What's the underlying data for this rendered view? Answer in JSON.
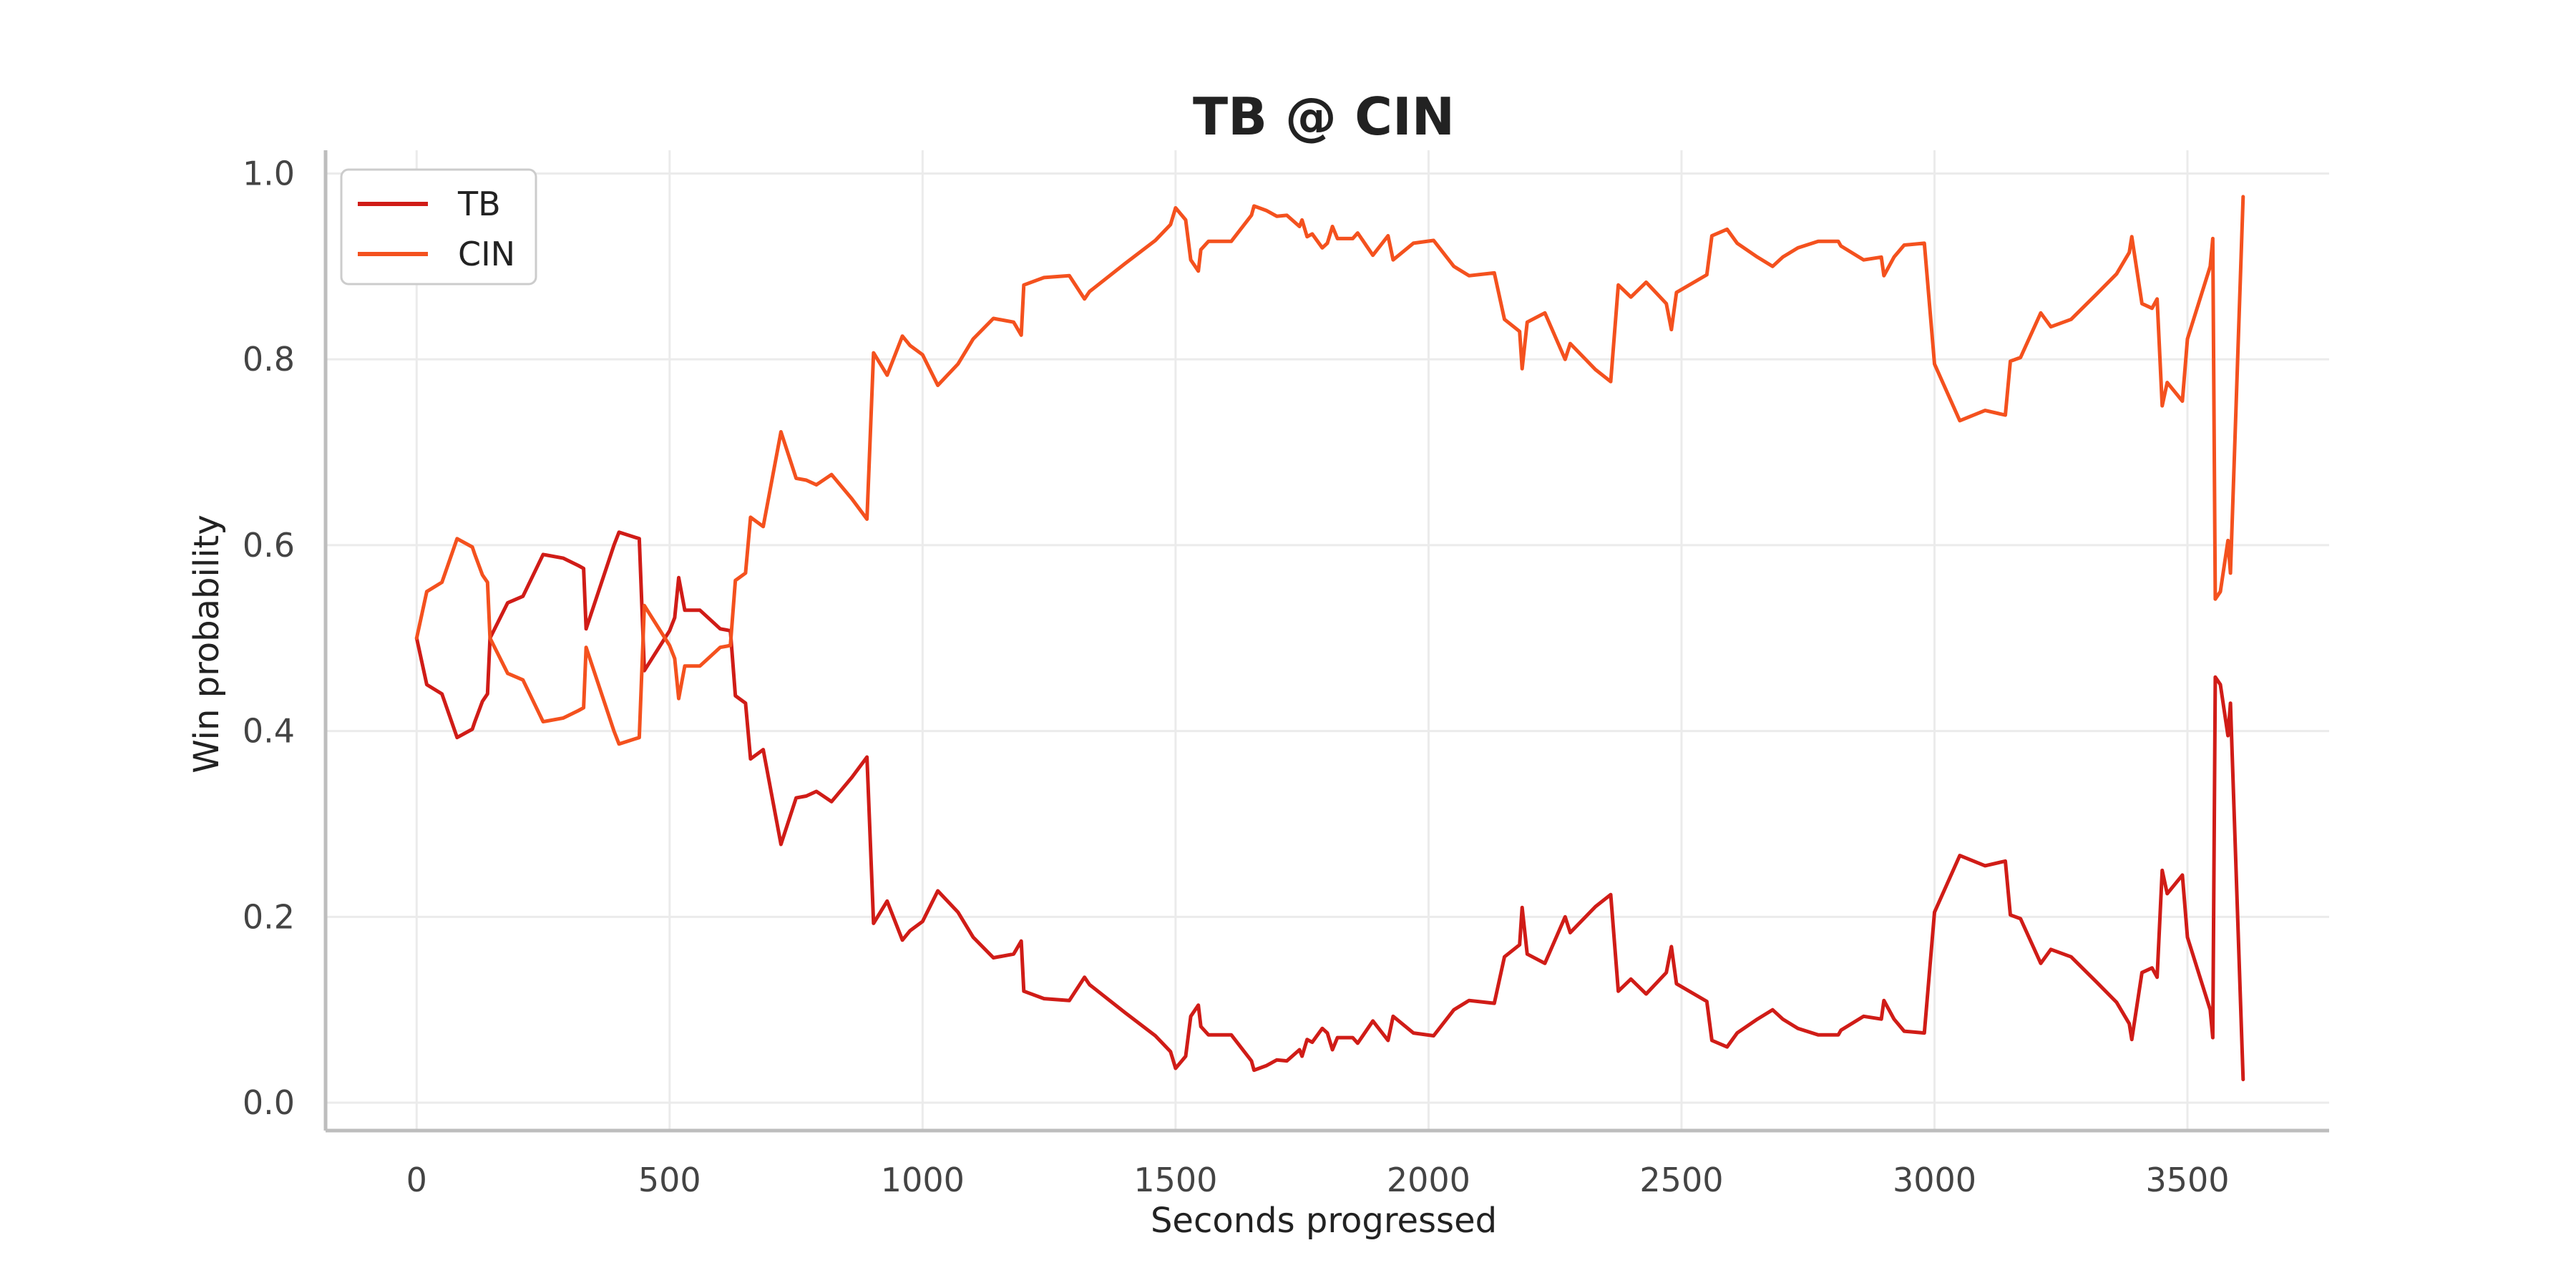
{
  "chart_data": {
    "type": "line",
    "title": "TB @ CIN",
    "xlabel": "Seconds progressed",
    "ylabel": "Win probability",
    "xlim": [
      -180,
      3780
    ],
    "ylim": [
      -0.03,
      1.025
    ],
    "xticks": [
      "0",
      "500",
      "1000",
      "1500",
      "2000",
      "2500",
      "3000",
      "3500"
    ],
    "yticks": [
      "0.0",
      "0.2",
      "0.4",
      "0.6",
      "0.8",
      "1.0"
    ],
    "grid": true,
    "legend_position": "top-left",
    "series": [
      {
        "name": "TB",
        "color": "#d01c17",
        "points": [
          [
            0,
            0.5
          ],
          [
            20,
            0.45
          ],
          [
            50,
            0.44
          ],
          [
            80,
            0.393
          ],
          [
            110,
            0.402
          ],
          [
            115,
            0.41
          ],
          [
            130,
            0.432
          ],
          [
            140,
            0.44
          ],
          [
            145,
            0.5
          ],
          [
            180,
            0.538
          ],
          [
            210,
            0.545
          ],
          [
            250,
            0.59
          ],
          [
            290,
            0.586
          ],
          [
            320,
            0.578
          ],
          [
            330,
            0.575
          ],
          [
            335,
            0.51
          ],
          [
            390,
            0.6
          ],
          [
            400,
            0.614
          ],
          [
            440,
            0.607
          ],
          [
            450,
            0.465
          ],
          [
            500,
            0.508
          ],
          [
            510,
            0.522
          ],
          [
            518,
            0.565
          ],
          [
            530,
            0.53
          ],
          [
            560,
            0.53
          ],
          [
            580,
            0.52
          ],
          [
            600,
            0.51
          ],
          [
            620,
            0.508
          ],
          [
            630,
            0.438
          ],
          [
            650,
            0.43
          ],
          [
            660,
            0.37
          ],
          [
            685,
            0.38
          ],
          [
            720,
            0.278
          ],
          [
            750,
            0.328
          ],
          [
            770,
            0.33
          ],
          [
            790,
            0.335
          ],
          [
            820,
            0.324
          ],
          [
            860,
            0.35
          ],
          [
            890,
            0.372
          ],
          [
            903,
            0.193
          ],
          [
            930,
            0.217
          ],
          [
            960,
            0.175
          ],
          [
            975,
            0.185
          ],
          [
            1000,
            0.195
          ],
          [
            1030,
            0.228
          ],
          [
            1070,
            0.205
          ],
          [
            1100,
            0.178
          ],
          [
            1140,
            0.156
          ],
          [
            1180,
            0.16
          ],
          [
            1195,
            0.174
          ],
          [
            1200,
            0.12
          ],
          [
            1240,
            0.112
          ],
          [
            1290,
            0.11
          ],
          [
            1320,
            0.135
          ],
          [
            1330,
            0.127
          ],
          [
            1400,
            0.097
          ],
          [
            1460,
            0.072
          ],
          [
            1490,
            0.055
          ],
          [
            1500,
            0.037
          ],
          [
            1520,
            0.05
          ],
          [
            1530,
            0.093
          ],
          [
            1545,
            0.105
          ],
          [
            1550,
            0.082
          ],
          [
            1565,
            0.073
          ],
          [
            1610,
            0.073
          ],
          [
            1650,
            0.045
          ],
          [
            1655,
            0.035
          ],
          [
            1680,
            0.04
          ],
          [
            1700,
            0.046
          ],
          [
            1720,
            0.045
          ],
          [
            1745,
            0.057
          ],
          [
            1750,
            0.05
          ],
          [
            1760,
            0.068
          ],
          [
            1770,
            0.065
          ],
          [
            1790,
            0.08
          ],
          [
            1800,
            0.075
          ],
          [
            1810,
            0.057
          ],
          [
            1820,
            0.07
          ],
          [
            1850,
            0.07
          ],
          [
            1860,
            0.064
          ],
          [
            1890,
            0.088
          ],
          [
            1920,
            0.067
          ],
          [
            1930,
            0.093
          ],
          [
            1970,
            0.075
          ],
          [
            2010,
            0.072
          ],
          [
            2050,
            0.1
          ],
          [
            2080,
            0.11
          ],
          [
            2130,
            0.107
          ],
          [
            2150,
            0.157
          ],
          [
            2180,
            0.17
          ],
          [
            2185,
            0.21
          ],
          [
            2195,
            0.16
          ],
          [
            2230,
            0.15
          ],
          [
            2270,
            0.2
          ],
          [
            2280,
            0.183
          ],
          [
            2330,
            0.211
          ],
          [
            2360,
            0.224
          ],
          [
            2375,
            0.12
          ],
          [
            2400,
            0.133
          ],
          [
            2430,
            0.117
          ],
          [
            2470,
            0.14
          ],
          [
            2480,
            0.168
          ],
          [
            2490,
            0.128
          ],
          [
            2550,
            0.109
          ],
          [
            2560,
            0.067
          ],
          [
            2590,
            0.06
          ],
          [
            2610,
            0.075
          ],
          [
            2650,
            0.09
          ],
          [
            2680,
            0.1
          ],
          [
            2700,
            0.09
          ],
          [
            2730,
            0.08
          ],
          [
            2770,
            0.073
          ],
          [
            2810,
            0.073
          ],
          [
            2815,
            0.078
          ],
          [
            2860,
            0.093
          ],
          [
            2895,
            0.09
          ],
          [
            2900,
            0.11
          ],
          [
            2920,
            0.09
          ],
          [
            2940,
            0.077
          ],
          [
            2980,
            0.075
          ],
          [
            3000,
            0.205
          ],
          [
            3050,
            0.266
          ],
          [
            3100,
            0.255
          ],
          [
            3140,
            0.26
          ],
          [
            3150,
            0.202
          ],
          [
            3170,
            0.198
          ],
          [
            3210,
            0.15
          ],
          [
            3230,
            0.165
          ],
          [
            3270,
            0.157
          ],
          [
            3320,
            0.13
          ],
          [
            3360,
            0.108
          ],
          [
            3385,
            0.085
          ],
          [
            3390,
            0.068
          ],
          [
            3410,
            0.14
          ],
          [
            3430,
            0.145
          ],
          [
            3440,
            0.135
          ],
          [
            3450,
            0.25
          ],
          [
            3460,
            0.225
          ],
          [
            3490,
            0.245
          ],
          [
            3500,
            0.178
          ],
          [
            3545,
            0.1
          ],
          [
            3550,
            0.07
          ],
          [
            3555,
            0.458
          ],
          [
            3565,
            0.45
          ],
          [
            3580,
            0.395
          ],
          [
            3585,
            0.43
          ],
          [
            3610,
            0.025
          ]
        ]
      },
      {
        "name": "CIN",
        "color": "#f4511e",
        "points": [
          [
            0,
            0.5
          ],
          [
            20,
            0.55
          ],
          [
            50,
            0.56
          ],
          [
            80,
            0.607
          ],
          [
            110,
            0.598
          ],
          [
            115,
            0.59
          ],
          [
            130,
            0.568
          ],
          [
            140,
            0.56
          ],
          [
            145,
            0.5
          ],
          [
            180,
            0.462
          ],
          [
            210,
            0.455
          ],
          [
            250,
            0.41
          ],
          [
            290,
            0.414
          ],
          [
            320,
            0.422
          ],
          [
            330,
            0.425
          ],
          [
            335,
            0.49
          ],
          [
            390,
            0.4
          ],
          [
            400,
            0.386
          ],
          [
            440,
            0.393
          ],
          [
            450,
            0.535
          ],
          [
            500,
            0.492
          ],
          [
            510,
            0.478
          ],
          [
            518,
            0.435
          ],
          [
            530,
            0.47
          ],
          [
            560,
            0.47
          ],
          [
            580,
            0.48
          ],
          [
            600,
            0.49
          ],
          [
            620,
            0.492
          ],
          [
            630,
            0.562
          ],
          [
            650,
            0.57
          ],
          [
            660,
            0.63
          ],
          [
            685,
            0.62
          ],
          [
            720,
            0.722
          ],
          [
            750,
            0.672
          ],
          [
            770,
            0.67
          ],
          [
            790,
            0.665
          ],
          [
            820,
            0.676
          ],
          [
            860,
            0.65
          ],
          [
            890,
            0.628
          ],
          [
            903,
            0.807
          ],
          [
            930,
            0.783
          ],
          [
            960,
            0.825
          ],
          [
            975,
            0.815
          ],
          [
            1000,
            0.805
          ],
          [
            1030,
            0.772
          ],
          [
            1070,
            0.795
          ],
          [
            1100,
            0.822
          ],
          [
            1140,
            0.844
          ],
          [
            1180,
            0.84
          ],
          [
            1195,
            0.826
          ],
          [
            1200,
            0.88
          ],
          [
            1240,
            0.888
          ],
          [
            1290,
            0.89
          ],
          [
            1320,
            0.865
          ],
          [
            1330,
            0.873
          ],
          [
            1400,
            0.903
          ],
          [
            1460,
            0.928
          ],
          [
            1490,
            0.945
          ],
          [
            1500,
            0.963
          ],
          [
            1520,
            0.95
          ],
          [
            1530,
            0.907
          ],
          [
            1545,
            0.895
          ],
          [
            1550,
            0.918
          ],
          [
            1565,
            0.927
          ],
          [
            1610,
            0.927
          ],
          [
            1650,
            0.955
          ],
          [
            1655,
            0.965
          ],
          [
            1680,
            0.96
          ],
          [
            1700,
            0.954
          ],
          [
            1720,
            0.955
          ],
          [
            1745,
            0.943
          ],
          [
            1750,
            0.95
          ],
          [
            1760,
            0.932
          ],
          [
            1770,
            0.935
          ],
          [
            1790,
            0.92
          ],
          [
            1800,
            0.925
          ],
          [
            1810,
            0.943
          ],
          [
            1820,
            0.93
          ],
          [
            1850,
            0.93
          ],
          [
            1860,
            0.936
          ],
          [
            1890,
            0.912
          ],
          [
            1920,
            0.933
          ],
          [
            1930,
            0.907
          ],
          [
            1970,
            0.925
          ],
          [
            2010,
            0.928
          ],
          [
            2050,
            0.9
          ],
          [
            2080,
            0.89
          ],
          [
            2130,
            0.893
          ],
          [
            2150,
            0.843
          ],
          [
            2180,
            0.83
          ],
          [
            2185,
            0.79
          ],
          [
            2195,
            0.84
          ],
          [
            2230,
            0.85
          ],
          [
            2270,
            0.8
          ],
          [
            2280,
            0.817
          ],
          [
            2330,
            0.789
          ],
          [
            2360,
            0.776
          ],
          [
            2375,
            0.88
          ],
          [
            2400,
            0.867
          ],
          [
            2430,
            0.883
          ],
          [
            2470,
            0.86
          ],
          [
            2480,
            0.832
          ],
          [
            2490,
            0.872
          ],
          [
            2550,
            0.891
          ],
          [
            2560,
            0.933
          ],
          [
            2590,
            0.94
          ],
          [
            2610,
            0.925
          ],
          [
            2650,
            0.91
          ],
          [
            2680,
            0.9
          ],
          [
            2700,
            0.91
          ],
          [
            2730,
            0.92
          ],
          [
            2770,
            0.927
          ],
          [
            2810,
            0.927
          ],
          [
            2815,
            0.922
          ],
          [
            2860,
            0.907
          ],
          [
            2895,
            0.91
          ],
          [
            2900,
            0.89
          ],
          [
            2920,
            0.91
          ],
          [
            2940,
            0.923
          ],
          [
            2980,
            0.925
          ],
          [
            3000,
            0.795
          ],
          [
            3050,
            0.734
          ],
          [
            3100,
            0.745
          ],
          [
            3140,
            0.74
          ],
          [
            3150,
            0.798
          ],
          [
            3170,
            0.802
          ],
          [
            3210,
            0.85
          ],
          [
            3230,
            0.835
          ],
          [
            3270,
            0.843
          ],
          [
            3320,
            0.87
          ],
          [
            3360,
            0.892
          ],
          [
            3385,
            0.915
          ],
          [
            3390,
            0.932
          ],
          [
            3410,
            0.86
          ],
          [
            3430,
            0.855
          ],
          [
            3440,
            0.865
          ],
          [
            3450,
            0.75
          ],
          [
            3460,
            0.775
          ],
          [
            3490,
            0.755
          ],
          [
            3500,
            0.822
          ],
          [
            3545,
            0.9
          ],
          [
            3550,
            0.93
          ],
          [
            3555,
            0.542
          ],
          [
            3565,
            0.55
          ],
          [
            3580,
            0.605
          ],
          [
            3585,
            0.57
          ],
          [
            3610,
            0.975
          ]
        ]
      }
    ]
  }
}
